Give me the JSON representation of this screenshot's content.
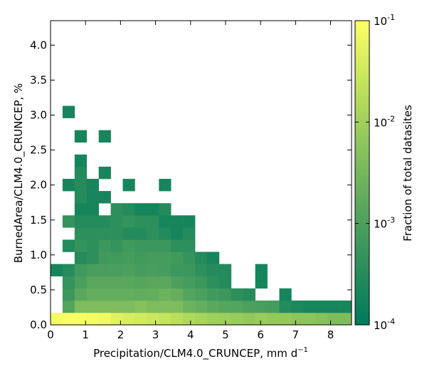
{
  "chart_data": {
    "type": "heatmap",
    "xlabel": "Precipitation/CLM4.0_CRUNCEP,  mm d",
    "xlabel_sup": "−1",
    "ylabel": "BurnedArea/CLM4.0_CRUNCEP,  %",
    "xlim": [
      0,
      8.6
    ],
    "ylim": [
      0,
      4.35
    ],
    "x_ticks": [
      "0",
      "1",
      "2",
      "3",
      "4",
      "5",
      "6",
      "7",
      "8"
    ],
    "y_ticks": [
      "0.0",
      "0.5",
      "1.0",
      "1.5",
      "2.0",
      "2.5",
      "3.0",
      "3.5",
      "4.0"
    ],
    "bin_width_x": 0.344,
    "bin_width_y": 0.174,
    "colorbar": {
      "label": "Fraction of total datasites",
      "scale": "log",
      "range": [
        0.0001,
        0.1
      ],
      "tick_bases": [
        "10",
        "10",
        "10",
        "10"
      ],
      "tick_exponents": [
        "-1",
        "-2",
        "-3",
        "-4"
      ],
      "colors": [
        "#007a5c",
        "#2d8f5c",
        "#5ca95d",
        "#8ec65c",
        "#c4e45c",
        "#ffff66"
      ]
    },
    "cells": [
      {
        "ix": 0,
        "iy": 0,
        "v": 0.08
      },
      {
        "ix": 1,
        "iy": 0,
        "v": 0.09
      },
      {
        "ix": 2,
        "iy": 0,
        "v": 0.09
      },
      {
        "ix": 3,
        "iy": 0,
        "v": 0.08
      },
      {
        "ix": 4,
        "iy": 0,
        "v": 0.07
      },
      {
        "ix": 5,
        "iy": 0,
        "v": 0.05
      },
      {
        "ix": 6,
        "iy": 0,
        "v": 0.04
      },
      {
        "ix": 7,
        "iy": 0,
        "v": 0.035
      },
      {
        "ix": 8,
        "iy": 0,
        "v": 0.03
      },
      {
        "ix": 9,
        "iy": 0,
        "v": 0.025
      },
      {
        "ix": 10,
        "iy": 0,
        "v": 0.02
      },
      {
        "ix": 11,
        "iy": 0,
        "v": 0.015
      },
      {
        "ix": 12,
        "iy": 0,
        "v": 0.012
      },
      {
        "ix": 13,
        "iy": 0,
        "v": 0.01
      },
      {
        "ix": 14,
        "iy": 0,
        "v": 0.009
      },
      {
        "ix": 15,
        "iy": 0,
        "v": 0.008
      },
      {
        "ix": 16,
        "iy": 0,
        "v": 0.007
      },
      {
        "ix": 17,
        "iy": 0,
        "v": 0.008
      },
      {
        "ix": 18,
        "iy": 0,
        "v": 0.007
      },
      {
        "ix": 19,
        "iy": 0,
        "v": 0.007
      },
      {
        "ix": 20,
        "iy": 0,
        "v": 0.006
      },
      {
        "ix": 21,
        "iy": 0,
        "v": 0.006
      },
      {
        "ix": 22,
        "iy": 0,
        "v": 0.005
      },
      {
        "ix": 23,
        "iy": 0,
        "v": 0.004
      },
      {
        "ix": 24,
        "iy": 0,
        "v": 0.004
      },
      {
        "ix": 1,
        "iy": 1,
        "v": 0.0012
      },
      {
        "ix": 2,
        "iy": 1,
        "v": 0.004
      },
      {
        "ix": 3,
        "iy": 1,
        "v": 0.004
      },
      {
        "ix": 4,
        "iy": 1,
        "v": 0.004
      },
      {
        "ix": 5,
        "iy": 1,
        "v": 0.004
      },
      {
        "ix": 6,
        "iy": 1,
        "v": 0.004
      },
      {
        "ix": 7,
        "iy": 1,
        "v": 0.005
      },
      {
        "ix": 8,
        "iy": 1,
        "v": 0.004
      },
      {
        "ix": 9,
        "iy": 1,
        "v": 0.004
      },
      {
        "ix": 10,
        "iy": 1,
        "v": 0.004
      },
      {
        "ix": 11,
        "iy": 1,
        "v": 0.0025
      },
      {
        "ix": 12,
        "iy": 1,
        "v": 0.002
      },
      {
        "ix": 13,
        "iy": 1,
        "v": 0.0015
      },
      {
        "ix": 14,
        "iy": 1,
        "v": 0.0013
      },
      {
        "ix": 15,
        "iy": 1,
        "v": 0.0012
      },
      {
        "ix": 16,
        "iy": 1,
        "v": 0.001
      },
      {
        "ix": 17,
        "iy": 1,
        "v": 0.0009
      },
      {
        "ix": 18,
        "iy": 1,
        "v": 0.0008
      },
      {
        "ix": 19,
        "iy": 1,
        "v": 0.0003
      },
      {
        "ix": 20,
        "iy": 1,
        "v": 0.00025
      },
      {
        "ix": 21,
        "iy": 1,
        "v": 0.0002
      },
      {
        "ix": 22,
        "iy": 1,
        "v": 0.0002
      },
      {
        "ix": 23,
        "iy": 1,
        "v": 0.0002
      },
      {
        "ix": 24,
        "iy": 1,
        "v": 0.0002
      },
      {
        "ix": 1,
        "iy": 2,
        "v": 0.0006
      },
      {
        "ix": 2,
        "iy": 2,
        "v": 0.0015
      },
      {
        "ix": 3,
        "iy": 2,
        "v": 0.002
      },
      {
        "ix": 4,
        "iy": 2,
        "v": 0.002
      },
      {
        "ix": 5,
        "iy": 2,
        "v": 0.002
      },
      {
        "ix": 6,
        "iy": 2,
        "v": 0.002
      },
      {
        "ix": 7,
        "iy": 2,
        "v": 0.0018
      },
      {
        "ix": 8,
        "iy": 2,
        "v": 0.002
      },
      {
        "ix": 9,
        "iy": 2,
        "v": 0.0025
      },
      {
        "ix": 10,
        "iy": 2,
        "v": 0.002
      },
      {
        "ix": 11,
        "iy": 2,
        "v": 0.0012
      },
      {
        "ix": 12,
        "iy": 2,
        "v": 0.001
      },
      {
        "ix": 13,
        "iy": 2,
        "v": 0.0007
      },
      {
        "ix": 14,
        "iy": 2,
        "v": 0.0006
      },
      {
        "ix": 15,
        "iy": 2,
        "v": 0.0004
      },
      {
        "ix": 16,
        "iy": 2,
        "v": 0.0003
      },
      {
        "ix": 19,
        "iy": 2,
        "v": 0.0002
      },
      {
        "ix": 1,
        "iy": 3,
        "v": 0.0005
      },
      {
        "ix": 2,
        "iy": 3,
        "v": 0.0009
      },
      {
        "ix": 3,
        "iy": 3,
        "v": 0.0014
      },
      {
        "ix": 4,
        "iy": 3,
        "v": 0.0014
      },
      {
        "ix": 5,
        "iy": 3,
        "v": 0.0014
      },
      {
        "ix": 6,
        "iy": 3,
        "v": 0.0014
      },
      {
        "ix": 7,
        "iy": 3,
        "v": 0.0013
      },
      {
        "ix": 8,
        "iy": 3,
        "v": 0.0014
      },
      {
        "ix": 9,
        "iy": 3,
        "v": 0.0014
      },
      {
        "ix": 10,
        "iy": 3,
        "v": 0.001
      },
      {
        "ix": 11,
        "iy": 3,
        "v": 0.0008
      },
      {
        "ix": 12,
        "iy": 3,
        "v": 0.0006
      },
      {
        "ix": 13,
        "iy": 3,
        "v": 0.0004
      },
      {
        "ix": 14,
        "iy": 3,
        "v": 0.0003
      },
      {
        "ix": 17,
        "iy": 3,
        "v": 0.0002
      },
      {
        "ix": 0,
        "iy": 4,
        "v": 0.0002
      },
      {
        "ix": 1,
        "iy": 4,
        "v": 0.0003
      },
      {
        "ix": 2,
        "iy": 4,
        "v": 0.0007
      },
      {
        "ix": 3,
        "iy": 4,
        "v": 0.0009
      },
      {
        "ix": 4,
        "iy": 4,
        "v": 0.0009
      },
      {
        "ix": 5,
        "iy": 4,
        "v": 0.0009
      },
      {
        "ix": 6,
        "iy": 4,
        "v": 0.001
      },
      {
        "ix": 7,
        "iy": 4,
        "v": 0.0008
      },
      {
        "ix": 8,
        "iy": 4,
        "v": 0.0009
      },
      {
        "ix": 9,
        "iy": 4,
        "v": 0.0008
      },
      {
        "ix": 10,
        "iy": 4,
        "v": 0.0006
      },
      {
        "ix": 11,
        "iy": 4,
        "v": 0.0006
      },
      {
        "ix": 12,
        "iy": 4,
        "v": 0.0004
      },
      {
        "ix": 13,
        "iy": 4,
        "v": 0.0003
      },
      {
        "ix": 14,
        "iy": 4,
        "v": 0.0003
      },
      {
        "ix": 17,
        "iy": 4,
        "v": 0.0002
      },
      {
        "ix": 2,
        "iy": 5,
        "v": 0.0003
      },
      {
        "ix": 3,
        "iy": 5,
        "v": 0.0004
      },
      {
        "ix": 4,
        "iy": 5,
        "v": 0.0007
      },
      {
        "ix": 5,
        "iy": 5,
        "v": 0.0007
      },
      {
        "ix": 6,
        "iy": 5,
        "v": 0.0008
      },
      {
        "ix": 7,
        "iy": 5,
        "v": 0.0007
      },
      {
        "ix": 8,
        "iy": 5,
        "v": 0.0008
      },
      {
        "ix": 9,
        "iy": 5,
        "v": 0.0008
      },
      {
        "ix": 10,
        "iy": 5,
        "v": 0.0007
      },
      {
        "ix": 11,
        "iy": 5,
        "v": 0.0005
      },
      {
        "ix": 12,
        "iy": 5,
        "v": 0.0003
      },
      {
        "ix": 13,
        "iy": 5,
        "v": 0.0002
      },
      {
        "ix": 1,
        "iy": 6,
        "v": 0.0003
      },
      {
        "ix": 2,
        "iy": 6,
        "v": 0.0005
      },
      {
        "ix": 3,
        "iy": 6,
        "v": 0.0004
      },
      {
        "ix": 4,
        "iy": 6,
        "v": 0.0006
      },
      {
        "ix": 5,
        "iy": 6,
        "v": 0.0005
      },
      {
        "ix": 6,
        "iy": 6,
        "v": 0.0007
      },
      {
        "ix": 7,
        "iy": 6,
        "v": 0.0006
      },
      {
        "ix": 8,
        "iy": 6,
        "v": 0.0006
      },
      {
        "ix": 9,
        "iy": 6,
        "v": 0.0006
      },
      {
        "ix": 10,
        "iy": 6,
        "v": 0.0004
      },
      {
        "ix": 11,
        "iy": 6,
        "v": 0.0004
      },
      {
        "ix": 2,
        "iy": 7,
        "v": 0.0004
      },
      {
        "ix": 3,
        "iy": 7,
        "v": 0.0004
      },
      {
        "ix": 4,
        "iy": 7,
        "v": 0.0004
      },
      {
        "ix": 5,
        "iy": 7,
        "v": 0.0004
      },
      {
        "ix": 6,
        "iy": 7,
        "v": 0.0003
      },
      {
        "ix": 7,
        "iy": 7,
        "v": 0.0003
      },
      {
        "ix": 8,
        "iy": 7,
        "v": 0.0004
      },
      {
        "ix": 9,
        "iy": 7,
        "v": 0.0003
      },
      {
        "ix": 10,
        "iy": 7,
        "v": 0.0002
      },
      {
        "ix": 11,
        "iy": 7,
        "v": 0.0003
      },
      {
        "ix": 1,
        "iy": 8,
        "v": 0.0005
      },
      {
        "ix": 2,
        "iy": 8,
        "v": 0.0003
      },
      {
        "ix": 3,
        "iy": 8,
        "v": 0.0003
      },
      {
        "ix": 4,
        "iy": 8,
        "v": 0.0003
      },
      {
        "ix": 5,
        "iy": 8,
        "v": 0.0004
      },
      {
        "ix": 6,
        "iy": 8,
        "v": 0.0005
      },
      {
        "ix": 7,
        "iy": 8,
        "v": 0.0004
      },
      {
        "ix": 8,
        "iy": 8,
        "v": 0.0004
      },
      {
        "ix": 9,
        "iy": 8,
        "v": 0.0002
      },
      {
        "ix": 10,
        "iy": 8,
        "v": 0.0002
      },
      {
        "ix": 11,
        "iy": 8,
        "v": 0.0002
      },
      {
        "ix": 2,
        "iy": 9,
        "v": 0.0002
      },
      {
        "ix": 3,
        "iy": 9,
        "v": 0.0002
      },
      {
        "ix": 5,
        "iy": 9,
        "v": 0.0004
      },
      {
        "ix": 6,
        "iy": 9,
        "v": 0.0003
      },
      {
        "ix": 7,
        "iy": 9,
        "v": 0.0002
      },
      {
        "ix": 8,
        "iy": 9,
        "v": 0.0002
      },
      {
        "ix": 9,
        "iy": 9,
        "v": 0.0003
      },
      {
        "ix": 2,
        "iy": 10,
        "v": 0.0003
      },
      {
        "ix": 3,
        "iy": 10,
        "v": 0.0002
      },
      {
        "ix": 4,
        "iy": 10,
        "v": 0.0002
      },
      {
        "ix": 1,
        "iy": 11,
        "v": 0.0002
      },
      {
        "ix": 2,
        "iy": 11,
        "v": 0.0003
      },
      {
        "ix": 3,
        "iy": 11,
        "v": 0.0002
      },
      {
        "ix": 6,
        "iy": 11,
        "v": 0.0002
      },
      {
        "ix": 9,
        "iy": 11,
        "v": 0.0002
      },
      {
        "ix": 2,
        "iy": 12,
        "v": 0.0003
      },
      {
        "ix": 4,
        "iy": 12,
        "v": 0.0002
      },
      {
        "ix": 2,
        "iy": 13,
        "v": 0.0002
      },
      {
        "ix": 2,
        "iy": 15,
        "v": 0.0002
      },
      {
        "ix": 4,
        "iy": 15,
        "v": 0.0002
      },
      {
        "ix": 1,
        "iy": 17,
        "v": 0.0002
      }
    ]
  }
}
